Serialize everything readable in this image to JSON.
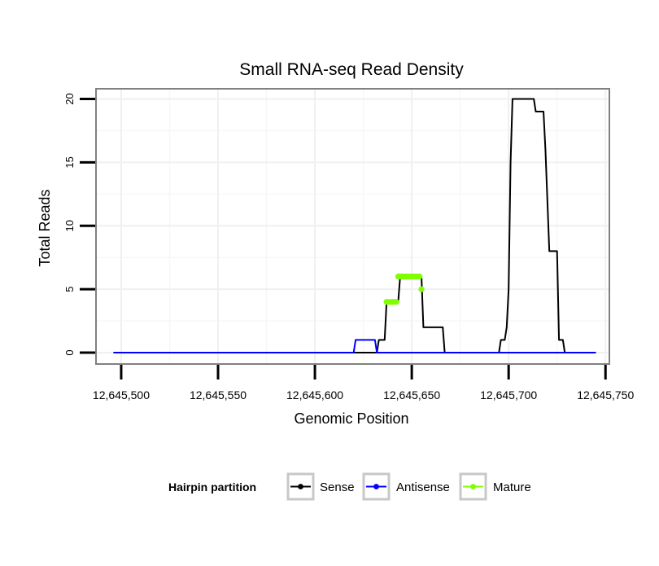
{
  "chart_data": {
    "type": "line",
    "title": "Small RNA-seq Read Density",
    "xlabel": "Genomic Position",
    "ylabel": "Total Reads",
    "xlim": [
      12645487,
      12645752
    ],
    "ylim": [
      -0.9,
      20.8
    ],
    "x_ticks": [
      12645500,
      12645550,
      12645600,
      12645650,
      12645700,
      12645750
    ],
    "x_tick_labels": [
      "12,645,500",
      "12,645,550",
      "12,645,600",
      "12,645,650",
      "12,645,700",
      "12,645,750"
    ],
    "y_ticks": [
      0,
      5,
      10,
      15,
      20
    ],
    "y_tick_labels": [
      "0",
      "5",
      "10",
      "15",
      "20"
    ],
    "grid": true,
    "legend": {
      "title": "Hairpin partition",
      "position": "bottom"
    },
    "series": [
      {
        "name": "Sense",
        "color": "#000000",
        "marker": "line",
        "x": [
          12645496,
          12645632,
          12645633,
          12645636,
          12645637,
          12645643,
          12645644,
          12645655,
          12645656,
          12645666,
          12645667,
          12645695,
          12645696,
          12645698,
          12645699,
          12645700,
          12645701,
          12645702,
          12645703,
          12645704,
          12645705,
          12645713,
          12645714,
          12645718,
          12645719,
          12645721,
          12645722,
          12645725,
          12645726,
          12645728,
          12645729,
          12645745
        ],
        "y": [
          0,
          0,
          1,
          1,
          4,
          4,
          6,
          6,
          2,
          2,
          0,
          0,
          1,
          1,
          2,
          5,
          15,
          20,
          20,
          20,
          20,
          20,
          19,
          19,
          16,
          8,
          8,
          8,
          1,
          1,
          0,
          0
        ]
      },
      {
        "name": "Antisense",
        "color": "#0000ff",
        "marker": "line",
        "x": [
          12645496,
          12645620,
          12645621,
          12645631,
          12645632,
          12645745
        ],
        "y": [
          0,
          0,
          1,
          1,
          0,
          0
        ]
      },
      {
        "name": "Mature",
        "color": "#7fff00",
        "marker": "points",
        "x": [
          12645637,
          12645638,
          12645639,
          12645640,
          12645641,
          12645642,
          12645643,
          12645644,
          12645645,
          12645646,
          12645647,
          12645648,
          12645649,
          12645650,
          12645651,
          12645652,
          12645653,
          12645654,
          12645655
        ],
        "y": [
          4,
          4,
          4,
          4,
          4,
          4,
          6,
          6,
          6,
          6,
          6,
          6,
          6,
          6,
          6,
          6,
          6,
          6,
          5
        ]
      }
    ]
  }
}
